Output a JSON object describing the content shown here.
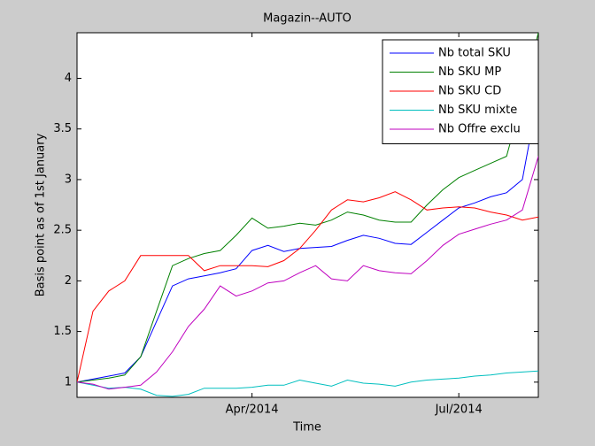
{
  "chart_data": {
    "type": "line",
    "title": "Magazin--AUTO",
    "x_label": "Time",
    "y_label": "Basis point as of 1st January",
    "categories": [
      null,
      null,
      null,
      null,
      null,
      null,
      null,
      null,
      null,
      null,
      null,
      "Apr/2014",
      null,
      null,
      null,
      null,
      null,
      null,
      null,
      null,
      null,
      null,
      null,
      null,
      "Jul/2014",
      null,
      null,
      null,
      null,
      null
    ],
    "ylim": [
      0.85,
      4.45
    ],
    "yticks": [
      1,
      1.5,
      2,
      2.5,
      3,
      3.5,
      4
    ],
    "legend": "upper-right",
    "series": [
      {
        "name": "Nb total SKU",
        "color": "#0000ff",
        "values": [
          1.0,
          1.03,
          1.06,
          1.09,
          1.25,
          1.6,
          1.95,
          2.02,
          2.05,
          2.08,
          2.12,
          2.3,
          2.35,
          2.29,
          2.32,
          2.33,
          2.34,
          2.4,
          2.45,
          2.42,
          2.37,
          2.36,
          2.48,
          2.6,
          2.72,
          2.77,
          2.83,
          2.87,
          3.0,
          3.85
        ]
      },
      {
        "name": "Nb SKU MP",
        "color": "#008000",
        "values": [
          1.0,
          1.02,
          1.04,
          1.07,
          1.25,
          1.7,
          2.15,
          2.22,
          2.27,
          2.3,
          2.45,
          2.62,
          2.52,
          2.54,
          2.57,
          2.55,
          2.6,
          2.68,
          2.65,
          2.6,
          2.58,
          2.58,
          2.75,
          2.9,
          3.02,
          3.09,
          3.16,
          3.23,
          3.8,
          4.45
        ]
      },
      {
        "name": "Nb SKU CD",
        "color": "#ff0000",
        "values": [
          1.0,
          1.7,
          1.9,
          2.0,
          2.25,
          2.25,
          2.25,
          2.25,
          2.1,
          2.15,
          2.15,
          2.15,
          2.14,
          2.2,
          2.32,
          2.5,
          2.7,
          2.8,
          2.78,
          2.82,
          2.88,
          2.8,
          2.7,
          2.72,
          2.73,
          2.72,
          2.68,
          2.65,
          2.6,
          2.63
        ]
      },
      {
        "name": "Nb SKU mixte",
        "color": "#00bfbf",
        "values": [
          1.0,
          0.97,
          0.94,
          0.95,
          0.93,
          0.87,
          0.86,
          0.88,
          0.94,
          0.94,
          0.94,
          0.95,
          0.97,
          0.97,
          1.02,
          0.99,
          0.96,
          1.02,
          0.99,
          0.98,
          0.96,
          1.0,
          1.02,
          1.03,
          1.04,
          1.06,
          1.07,
          1.09,
          1.1,
          1.11
        ]
      },
      {
        "name": "Nb Offre exclu",
        "color": "#bf00bf",
        "values": [
          1.0,
          0.98,
          0.93,
          0.95,
          0.97,
          1.1,
          1.3,
          1.55,
          1.72,
          1.95,
          1.85,
          1.9,
          1.98,
          2.0,
          2.08,
          2.15,
          2.02,
          2.0,
          2.15,
          2.1,
          2.08,
          2.07,
          2.2,
          2.35,
          2.46,
          2.51,
          2.56,
          2.6,
          2.7,
          3.23
        ]
      }
    ]
  }
}
